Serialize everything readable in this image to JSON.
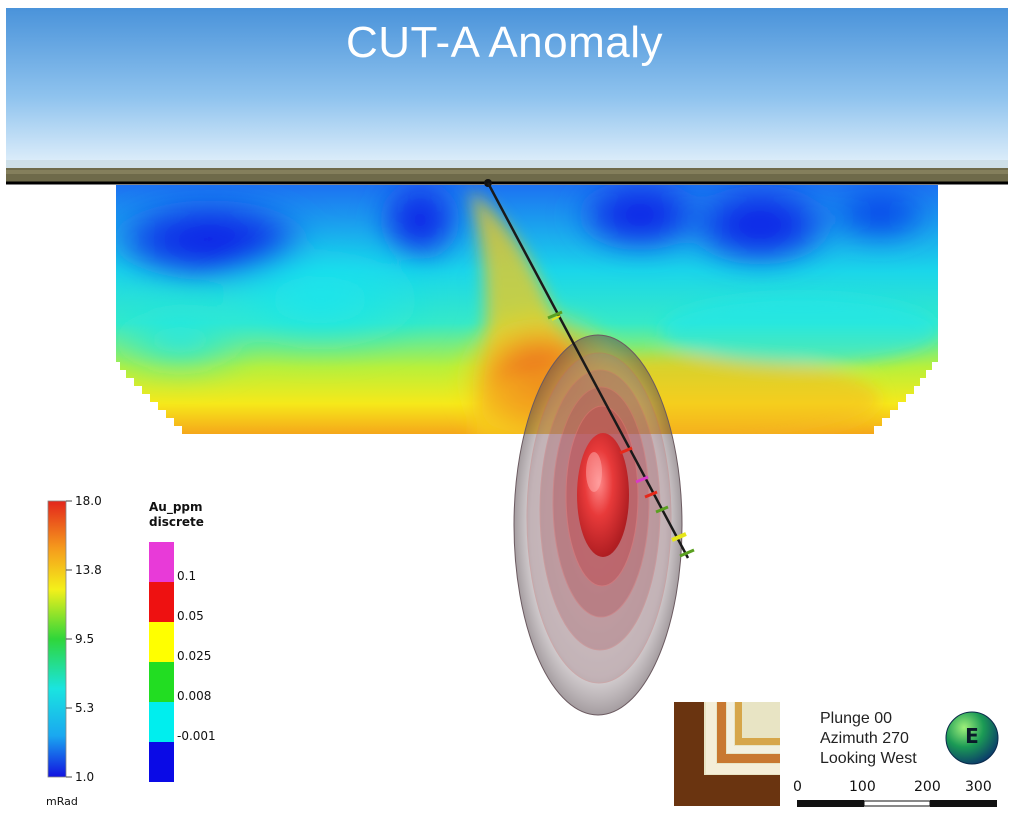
{
  "title": "CUT-A Anomaly",
  "colorbar": {
    "unit": "mRad",
    "ticks": [
      "18.0",
      "13.8",
      "9.5",
      "5.3",
      "1.0"
    ],
    "min": 1.0,
    "max": 18.0
  },
  "au_legend": {
    "title_line1": "Au_ppm",
    "title_line2": "discrete",
    "bins": [
      {
        "color": "#e83ad8",
        "label": "0.1"
      },
      {
        "color": "#ee1111",
        "label": "0.05"
      },
      {
        "color": "#ffff00",
        "label": "0.025"
      },
      {
        "color": "#22dd22",
        "label": "0.008"
      },
      {
        "color": "#00eeee",
        "label": "-0.001"
      },
      {
        "color": "#0a0ae6",
        "label": ""
      }
    ]
  },
  "orientation": {
    "plunge": "Plunge 00",
    "azimuth": "Azimuth 270",
    "looking": "Looking West",
    "compass_letter": "E"
  },
  "scale_bar": {
    "labels": [
      "0",
      "100",
      "200",
      "300"
    ]
  },
  "colors": {
    "sky_top": "#4f97dc",
    "sky_bottom": "#ddeefa",
    "section_low": "#0a1ee8",
    "section_high": "#e8561a",
    "anomaly_core": "#e02b2b"
  }
}
